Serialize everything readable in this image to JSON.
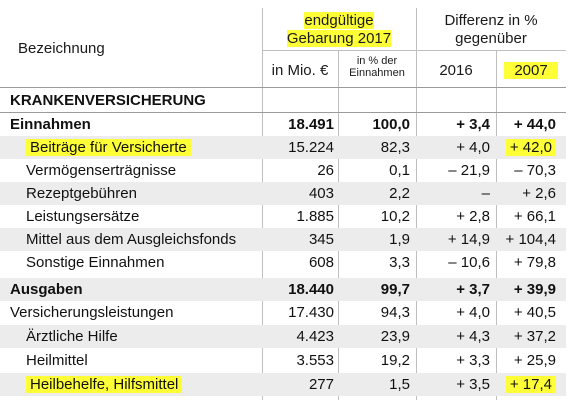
{
  "header": {
    "bezeichnung": "Bezeichnung",
    "group1_line1": "endgültige",
    "group1_line2": "Gebarung 2017",
    "group2_line1": "Differenz in %",
    "group2_line2": "gegenüber",
    "col_mio": "in Mio. €",
    "col_pct_line1": "in % der",
    "col_pct_line2": "Einnahmen",
    "col_2016": "2016",
    "col_2007": "2007"
  },
  "section_title": "KRANKENVERSICHERUNG",
  "rows": [
    {
      "label": "Einnahmen",
      "mio": "18.491",
      "pct": "100,0",
      "d2016": "+ 3,4",
      "d2007": "+ 44,0"
    },
    {
      "label": "Beiträge für Versicherte",
      "mio": "15.224",
      "pct": "82,3",
      "d2016": "+ 4,0",
      "d2007": "+ 42,0"
    },
    {
      "label": "Vermögenserträgnisse",
      "mio": "26",
      "pct": "0,1",
      "d2016": "– 21,9",
      "d2007": "– 70,3"
    },
    {
      "label": "Rezeptgebühren",
      "mio": "403",
      "pct": "2,2",
      "d2016": "–",
      "d2007": "+ 2,6"
    },
    {
      "label": "Leistungsersätze",
      "mio": "1.885",
      "pct": "10,2",
      "d2016": "+ 2,8",
      "d2007": "+ 66,1"
    },
    {
      "label": "Mittel aus dem Ausgleichsfonds",
      "mio": "345",
      "pct": "1,9",
      "d2016": "+ 14,9",
      "d2007": "+ 104,4"
    },
    {
      "label": "Sonstige Einnahmen",
      "mio": "608",
      "pct": "3,3",
      "d2016": "– 10,6",
      "d2007": "+ 79,8"
    },
    {
      "label": "Ausgaben",
      "mio": "18.440",
      "pct": "99,7",
      "d2016": "+ 3,7",
      "d2007": "+ 39,9"
    },
    {
      "label": "Versicherungsleistungen",
      "mio": "17.430",
      "pct": "94,3",
      "d2016": "+ 4,0",
      "d2007": "+ 40,5"
    },
    {
      "label": "Ärztliche Hilfe",
      "mio": "4.423",
      "pct": "23,9",
      "d2016": "+ 4,3",
      "d2007": "+ 37,2"
    },
    {
      "label": "Heilmittel",
      "mio": "3.553",
      "pct": "19,2",
      "d2016": "+ 3,3",
      "d2007": "+ 25,9"
    },
    {
      "label": "Heilbehelfe, Hilfsmittel",
      "mio": "277",
      "pct": "1,5",
      "d2016": "+ 3,5",
      "d2007": "+ 17,4"
    }
  ],
  "colors": {
    "highlight": "#ffff38",
    "shade": "#ececec"
  }
}
